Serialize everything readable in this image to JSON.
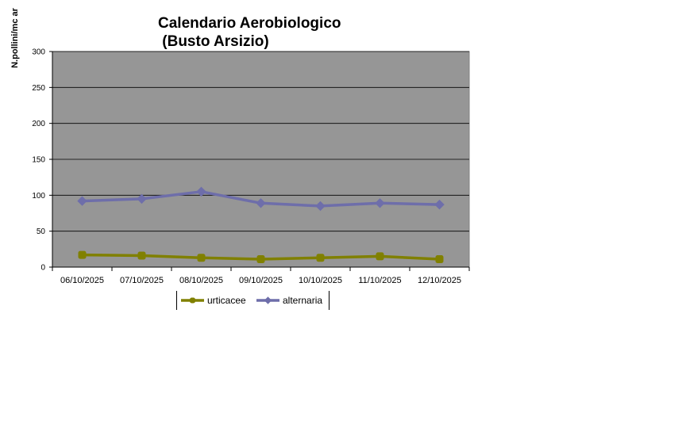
{
  "chart_data": {
    "type": "line",
    "title": [
      "Calendario Aerobiologico",
      " (Busto Arsizio)"
    ],
    "ylabel": "N.pollini/mc ar",
    "xlabel": "",
    "categories": [
      "06/10/2025",
      "07/10/2025",
      "08/10/2025",
      "09/10/2025",
      "10/10/2025",
      "11/10/2025",
      "12/10/2025"
    ],
    "ylim": [
      0,
      300
    ],
    "yticks": [
      0,
      50,
      100,
      150,
      200,
      250,
      300
    ],
    "grid": true,
    "legend_position": "bottom",
    "plot_background": "#969696",
    "series": [
      {
        "name": "urticacee",
        "color": "#808000",
        "marker": "square",
        "values": [
          17,
          16,
          13,
          11,
          13,
          15,
          11
        ]
      },
      {
        "name": "alternaria",
        "color": "#6E6EAA",
        "marker": "diamond",
        "values": [
          92,
          95,
          105,
          89,
          85,
          89,
          87
        ]
      }
    ]
  }
}
